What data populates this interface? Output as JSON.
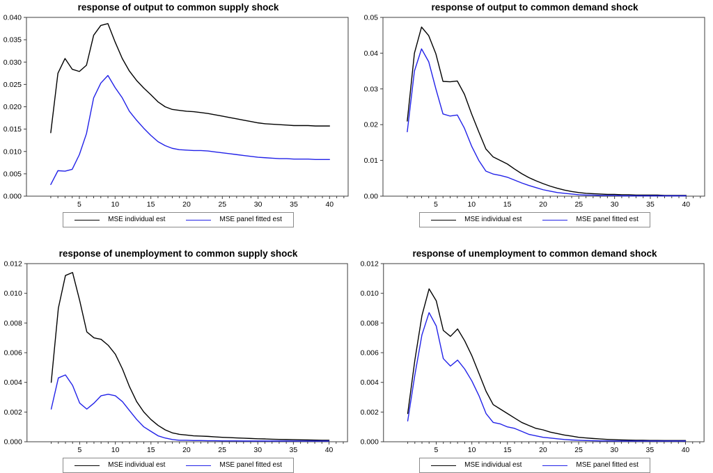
{
  "colors": {
    "individual": "#000000",
    "panel": "#2121e8",
    "axis": "#3c3c3c",
    "legend_border": "#8a8a8a"
  },
  "chart_data": [
    {
      "type": "line",
      "title": "response of output to common supply shock",
      "x": [
        1,
        2,
        3,
        4,
        5,
        6,
        7,
        8,
        9,
        10,
        11,
        12,
        13,
        14,
        15,
        16,
        17,
        18,
        19,
        20,
        21,
        22,
        23,
        24,
        25,
        26,
        27,
        28,
        29,
        30,
        31,
        32,
        33,
        34,
        35,
        36,
        37,
        38,
        39,
        40
      ],
      "xticks": [
        5,
        10,
        15,
        20,
        25,
        30,
        35,
        40
      ],
      "ylim": [
        0,
        0.04
      ],
      "yticks": [
        "0.000",
        "0.005",
        "0.010",
        "0.015",
        "0.020",
        "0.025",
        "0.030",
        "0.035",
        "0.040"
      ],
      "legend_position": "bottom",
      "grid": false,
      "series": [
        {
          "name": "MSE individual est",
          "color": "#000000",
          "values": [
            0.0142,
            0.0275,
            0.0308,
            0.0284,
            0.0279,
            0.0293,
            0.036,
            0.0382,
            0.0386,
            0.0345,
            0.0308,
            0.028,
            0.0259,
            0.0242,
            0.0227,
            0.0211,
            0.02,
            0.0194,
            0.0192,
            0.019,
            0.0189,
            0.0187,
            0.0185,
            0.0182,
            0.0179,
            0.0176,
            0.0173,
            0.017,
            0.0167,
            0.0164,
            0.0162,
            0.0161,
            0.016,
            0.0159,
            0.0158,
            0.0158,
            0.0158,
            0.0157,
            0.0157,
            0.0157
          ]
        },
        {
          "name": "MSE panel fitted est",
          "color": "#2121e8",
          "values": [
            0.0026,
            0.0057,
            0.0056,
            0.006,
            0.0093,
            0.014,
            0.022,
            0.0253,
            0.027,
            0.0243,
            0.022,
            0.019,
            0.017,
            0.0152,
            0.0136,
            0.0122,
            0.0113,
            0.0107,
            0.0104,
            0.0103,
            0.0102,
            0.0102,
            0.0101,
            0.0099,
            0.0097,
            0.0095,
            0.0093,
            0.0091,
            0.0089,
            0.0087,
            0.0086,
            0.0085,
            0.0084,
            0.0084,
            0.0083,
            0.0083,
            0.0083,
            0.0082,
            0.0082,
            0.0082
          ]
        }
      ]
    },
    {
      "type": "line",
      "title": "response of output to common demand shock",
      "x": [
        1,
        2,
        3,
        4,
        5,
        6,
        7,
        8,
        9,
        10,
        11,
        12,
        13,
        14,
        15,
        16,
        17,
        18,
        19,
        20,
        21,
        22,
        23,
        24,
        25,
        26,
        27,
        28,
        29,
        30,
        31,
        32,
        33,
        34,
        35,
        36,
        37,
        38,
        39,
        40
      ],
      "xticks": [
        5,
        10,
        15,
        20,
        25,
        30,
        35,
        40
      ],
      "ylim": [
        0,
        0.05
      ],
      "yticks": [
        "0.00",
        "0.01",
        "0.02",
        "0.03",
        "0.04",
        "0.05"
      ],
      "legend_position": "bottom",
      "grid": false,
      "series": [
        {
          "name": "MSE individual est",
          "color": "#000000",
          "values": [
            0.021,
            0.04,
            0.0473,
            0.0449,
            0.0398,
            0.0321,
            0.032,
            0.0322,
            0.0285,
            0.023,
            0.018,
            0.0132,
            0.011,
            0.01,
            0.009,
            0.0076,
            0.0063,
            0.0052,
            0.0043,
            0.0035,
            0.0028,
            0.0022,
            0.0017,
            0.0013,
            0.001,
            0.0008,
            0.0007,
            0.0006,
            0.0005,
            0.0005,
            0.0004,
            0.0004,
            0.0003,
            0.0003,
            0.0003,
            0.0003,
            0.0002,
            0.0002,
            0.0002,
            0.0002
          ]
        },
        {
          "name": "MSE panel fitted est",
          "color": "#2121e8",
          "values": [
            0.018,
            0.035,
            0.0412,
            0.0376,
            0.03,
            0.023,
            0.0224,
            0.0227,
            0.019,
            0.014,
            0.01,
            0.007,
            0.0062,
            0.0058,
            0.0053,
            0.0045,
            0.0037,
            0.003,
            0.0024,
            0.0018,
            0.0014,
            0.001,
            0.0008,
            0.0006,
            0.0004,
            0.0003,
            0.0003,
            0.0002,
            0.0002,
            0.0002,
            0.0001,
            0.0001,
            0.0001,
            0.0001,
            0.0001,
            0.0001,
            0.0001,
            0.0001,
            0.0001,
            0.0001
          ]
        }
      ]
    },
    {
      "type": "line",
      "title": "response of unemployment to common supply shock",
      "x": [
        1,
        2,
        3,
        4,
        5,
        6,
        7,
        8,
        9,
        10,
        11,
        12,
        13,
        14,
        15,
        16,
        17,
        18,
        19,
        20,
        21,
        22,
        23,
        24,
        25,
        26,
        27,
        28,
        29,
        30,
        31,
        32,
        33,
        34,
        35,
        36,
        37,
        38,
        39,
        40
      ],
      "xticks": [
        5,
        10,
        15,
        20,
        25,
        30,
        35,
        40
      ],
      "ylim": [
        0,
        0.012
      ],
      "yticks": [
        "0.000",
        "0.002",
        "0.004",
        "0.006",
        "0.008",
        "0.010",
        "0.012"
      ],
      "legend_position": "bottom",
      "grid": false,
      "series": [
        {
          "name": "MSE individual est",
          "color": "#000000",
          "values": [
            0.004,
            0.009,
            0.0112,
            0.0114,
            0.0095,
            0.0074,
            0.007,
            0.0069,
            0.0065,
            0.0059,
            0.0049,
            0.0037,
            0.0027,
            0.002,
            0.0015,
            0.0011,
            0.0008,
            0.0006,
            0.0005,
            0.00045,
            0.0004,
            0.00038,
            0.00036,
            0.00033,
            0.0003,
            0.00028,
            0.00026,
            0.00024,
            0.00022,
            0.0002,
            0.00019,
            0.00017,
            0.00016,
            0.00015,
            0.00014,
            0.00013,
            0.00012,
            0.00011,
            0.0001,
            0.0001
          ]
        },
        {
          "name": "MSE panel fitted est",
          "color": "#2121e8",
          "values": [
            0.0022,
            0.0043,
            0.0045,
            0.0038,
            0.0026,
            0.0022,
            0.0026,
            0.0031,
            0.0032,
            0.0031,
            0.0027,
            0.0021,
            0.0015,
            0.001,
            0.0007,
            0.0004,
            0.00025,
            0.00015,
            0.0001,
            0.0001,
            8e-05,
            8e-05,
            7e-05,
            7e-05,
            6e-05,
            6e-05,
            6e-05,
            5e-05,
            5e-05,
            5e-05,
            5e-05,
            5e-05,
            5e-05,
            5e-05,
            5e-05,
            5e-05,
            5e-05,
            5e-05,
            5e-05,
            5e-05
          ]
        }
      ]
    },
    {
      "type": "line",
      "title": "response of unemployment to common demand shock",
      "x": [
        1,
        2,
        3,
        4,
        5,
        6,
        7,
        8,
        9,
        10,
        11,
        12,
        13,
        14,
        15,
        16,
        17,
        18,
        19,
        20,
        21,
        22,
        23,
        24,
        25,
        26,
        27,
        28,
        29,
        30,
        31,
        32,
        33,
        34,
        35,
        36,
        37,
        38,
        39,
        40
      ],
      "xticks": [
        5,
        10,
        15,
        20,
        25,
        30,
        35,
        40
      ],
      "ylim": [
        0,
        0.012
      ],
      "yticks": [
        "0.000",
        "0.002",
        "0.004",
        "0.006",
        "0.008",
        "0.010",
        "0.012"
      ],
      "legend_position": "bottom",
      "grid": false,
      "series": [
        {
          "name": "MSE individual est",
          "color": "#000000",
          "values": [
            0.0019,
            0.0055,
            0.0085,
            0.0103,
            0.0095,
            0.0075,
            0.0071,
            0.0076,
            0.0068,
            0.0058,
            0.0046,
            0.0034,
            0.0025,
            0.0022,
            0.0019,
            0.0016,
            0.0013,
            0.0011,
            0.0009,
            0.0008,
            0.00065,
            0.00055,
            0.00045,
            0.00038,
            0.0003,
            0.00026,
            0.00022,
            0.00019,
            0.00016,
            0.00014,
            0.00012,
            0.00011,
            0.0001,
            0.0001,
            9e-05,
            9e-05,
            8e-05,
            8e-05,
            8e-05,
            8e-05
          ]
        },
        {
          "name": "MSE panel fitted est",
          "color": "#2121e8",
          "values": [
            0.0014,
            0.0045,
            0.0072,
            0.0087,
            0.0078,
            0.0056,
            0.0051,
            0.0055,
            0.0049,
            0.0041,
            0.0031,
            0.0019,
            0.0013,
            0.0012,
            0.001,
            0.0009,
            0.0007,
            0.0005,
            0.0004,
            0.0003,
            0.00025,
            0.0002,
            0.00015,
            0.00012,
            0.0001,
            8e-05,
            7e-05,
            6e-05,
            6e-05,
            5e-05,
            5e-05,
            5e-05,
            5e-05,
            5e-05,
            5e-05,
            5e-05,
            5e-05,
            5e-05,
            5e-05,
            5e-05
          ]
        }
      ]
    }
  ]
}
